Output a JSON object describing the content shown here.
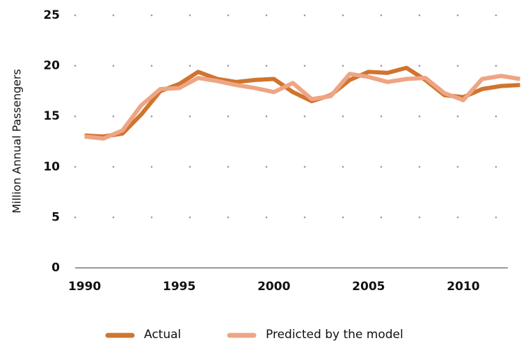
{
  "chart_data": {
    "type": "line",
    "y_label": "Million Annual Passengers",
    "x": [
      1990,
      1991,
      1992,
      1993,
      1994,
      1995,
      1996,
      1997,
      1998,
      1999,
      2000,
      2001,
      2002,
      2003,
      2004,
      2005,
      2006,
      2007,
      2008,
      2009,
      2010,
      2011,
      2012,
      2013
    ],
    "series": [
      {
        "name": "Actual",
        "color": "#d0742f",
        "values": [
          13.1,
          13.0,
          13.3,
          15.2,
          17.5,
          18.2,
          19.4,
          18.7,
          18.4,
          18.6,
          18.7,
          17.4,
          16.5,
          17.1,
          18.6,
          19.4,
          19.3,
          19.8,
          18.6,
          17.1,
          16.9,
          17.7,
          18.0,
          18.1
        ]
      },
      {
        "name": "Predicted by the model",
        "color": "#eea583",
        "values": [
          13.0,
          12.8,
          13.6,
          16.1,
          17.7,
          17.8,
          18.8,
          18.5,
          18.1,
          17.8,
          17.4,
          18.3,
          16.7,
          17.0,
          19.2,
          18.9,
          18.4,
          18.7,
          18.8,
          17.3,
          16.6,
          18.7,
          19.0,
          18.7
        ]
      }
    ],
    "xlim": [
      1989.5,
      2013.2
    ],
    "xticks": [
      1990,
      1995,
      2000,
      2005,
      2010
    ],
    "ylim": [
      0,
      25
    ],
    "yticks": [
      0,
      5,
      10,
      15,
      20,
      25
    ],
    "grid": "dotted",
    "legend": "bottom"
  }
}
